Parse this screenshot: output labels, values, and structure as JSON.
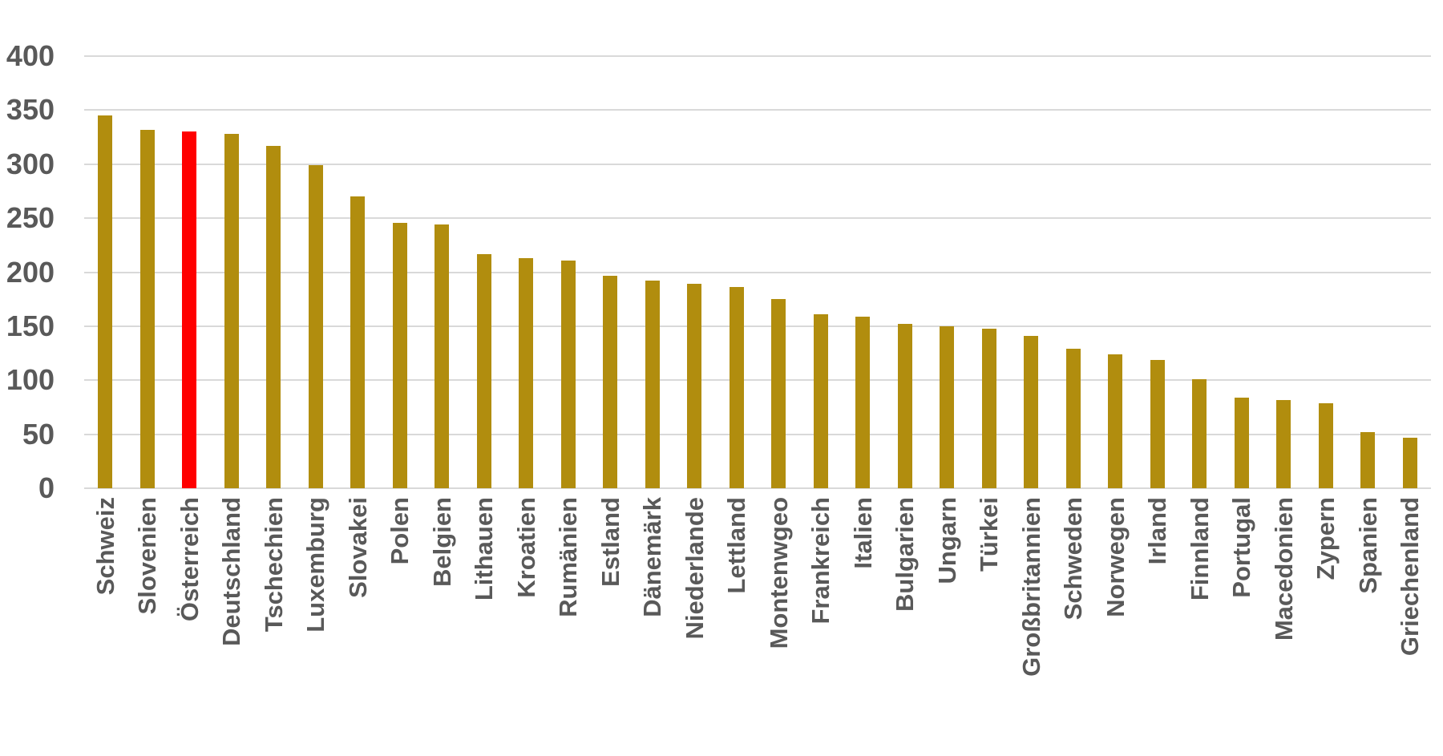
{
  "chart_data": {
    "type": "bar",
    "title": "",
    "xlabel": "",
    "ylabel": "",
    "categories": [
      "Schweiz",
      "Slovenien",
      "Österreich",
      "Deutschland",
      "Tschechien",
      "Luxemburg",
      "Slovakei",
      "Polen",
      "Belgien",
      "Lithauen",
      "Kroatien",
      "Rumänien",
      "Estland",
      "Dänemärk",
      "Niederlande",
      "Lettland",
      "Montenwgeo",
      "Frankreich",
      "Italien",
      "Bulgarien",
      "Ungarn",
      "Türkei",
      "Großbritannien",
      "Schweden",
      "Norwegen",
      "Irland",
      "Finnland",
      "Portugal",
      "Macedonien",
      "Zypern",
      "Spanien",
      "Griechenland"
    ],
    "values": [
      345,
      332,
      330,
      328,
      317,
      299,
      270,
      246,
      244,
      217,
      213,
      211,
      197,
      192,
      189,
      186,
      175,
      161,
      159,
      152,
      150,
      148,
      141,
      129,
      124,
      119,
      101,
      84,
      82,
      79,
      52,
      47
    ],
    "highlight_category": "Österreich",
    "ylim": [
      0,
      400
    ],
    "yticks": [
      400,
      350,
      300,
      250,
      200,
      150,
      100,
      50,
      0
    ],
    "ytick_labels": [
      "400",
      "350",
      "300",
      "250",
      "200",
      "150",
      "100",
      "50",
      "0"
    ],
    "grid": true,
    "legend": false,
    "colors": {
      "bar": "#b18d0e",
      "highlight": "#ff0000",
      "gridline": "#d9d9d9",
      "tick_text": "#595959",
      "background": "#ffffff"
    }
  }
}
